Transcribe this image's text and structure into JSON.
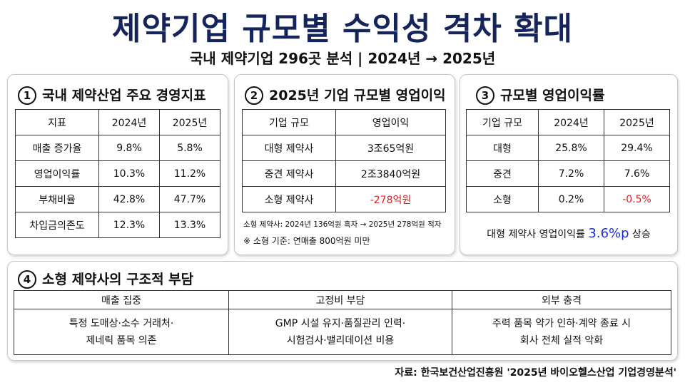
{
  "header": {
    "title": "제약기업 규모별 수익성 격차 확대",
    "subtitle": "국내 제약기업 296곳 분석 | 2024년 → 2025년"
  },
  "panel1": {
    "number": "1",
    "title": "국내 제약산업 주요 경영지표",
    "columns": [
      "지표",
      "2024년",
      "2025년"
    ],
    "rows": [
      [
        "매출 증가율",
        "9.8%",
        "5.8%"
      ],
      [
        "영업이익률",
        "10.3%",
        "11.2%"
      ],
      [
        "부채비율",
        "42.8%",
        "47.7%"
      ],
      [
        "차입금의존도",
        "12.3%",
        "13.3%"
      ]
    ]
  },
  "panel2": {
    "number": "2",
    "title": "2025년 기업 규모별 영업이익",
    "columns": [
      "기업 규모",
      "영업이익"
    ],
    "rows": [
      [
        "대형 제약사",
        "3조65억원"
      ],
      [
        "중견 제약사",
        "2조3840억원"
      ],
      [
        "소형 제약사",
        "-278억원"
      ]
    ],
    "note1": "소형 제약사: 2024년 136억원 흑자 → 2025년 278억원 적자",
    "note2": "※ 소형 기준: 연매출 800억원 미만"
  },
  "panel3": {
    "number": "3",
    "title": "규모별 영업이익률",
    "columns": [
      "기업 규모",
      "2024년",
      "2025년"
    ],
    "rows": [
      [
        "대형",
        "25.8%",
        "29.4%"
      ],
      [
        "중견",
        "7.2%",
        "7.6%"
      ],
      [
        "소형",
        "0.2%",
        "-0.5%"
      ]
    ],
    "summary_prefix": "대형 제약사 영업이익률 ",
    "summary_value": "3.6%p",
    "summary_suffix": " 상승"
  },
  "panel4": {
    "number": "4",
    "title": "소형 제약사의 구조적 부담",
    "columns": [
      "매출 집중",
      "고정비 부담",
      "외부 충격"
    ],
    "cells": [
      [
        "특정 도매상·소수 거래처·",
        "제네릭 품목 의존"
      ],
      [
        "GMP 시설 유지·품질관리 인력·",
        "시험검사·밸리데이션 비용"
      ],
      [
        "주력 품목 약가 인하·계약 종료 시",
        "회사 전체 실적 악화"
      ]
    ]
  },
  "source": "자료: 한국보건산업진흥원 '2025년 바이오헬스산업 기업경영분석'",
  "colors": {
    "title": "#16245c",
    "negative": "#e01e1e",
    "highlight": "#1a2fd6"
  }
}
